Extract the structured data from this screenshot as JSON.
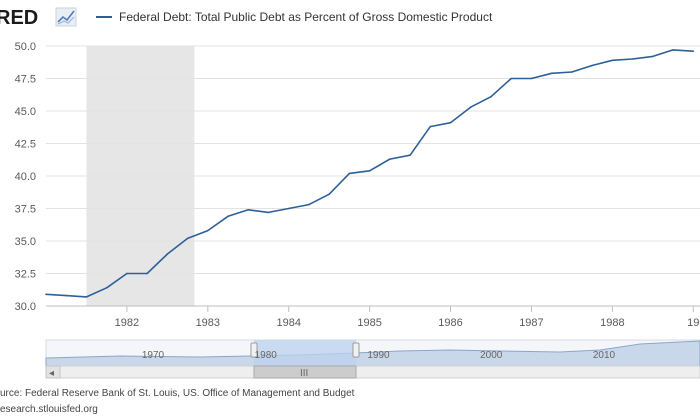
{
  "brand": {
    "logo_text": "RED"
  },
  "chart_data": {
    "type": "line",
    "title": "",
    "xlabel": "",
    "ylabel": "",
    "legend": {
      "placement": "top-left"
    },
    "series": [
      {
        "name": "Federal Debt: Total Public Debt as Percent of Gross Domestic Product",
        "color": "#2f5f98",
        "points": [
          {
            "x": "1981-01",
            "y": 30.9
          },
          {
            "x": "1981-04",
            "y": 30.8
          },
          {
            "x": "1981-07",
            "y": 30.7
          },
          {
            "x": "1981-10",
            "y": 31.4
          },
          {
            "x": "1982-01",
            "y": 32.5
          },
          {
            "x": "1982-04",
            "y": 32.5
          },
          {
            "x": "1982-07",
            "y": 34.0
          },
          {
            "x": "1982-10",
            "y": 35.2
          },
          {
            "x": "1983-01",
            "y": 35.8
          },
          {
            "x": "1983-04",
            "y": 36.9
          },
          {
            "x": "1983-07",
            "y": 37.4
          },
          {
            "x": "1983-10",
            "y": 37.2
          },
          {
            "x": "1984-01",
            "y": 37.5
          },
          {
            "x": "1984-04",
            "y": 37.8
          },
          {
            "x": "1984-07",
            "y": 38.6
          },
          {
            "x": "1984-10",
            "y": 40.2
          },
          {
            "x": "1985-01",
            "y": 40.4
          },
          {
            "x": "1985-04",
            "y": 41.3
          },
          {
            "x": "1985-07",
            "y": 41.6
          },
          {
            "x": "1985-10",
            "y": 43.8
          },
          {
            "x": "1986-01",
            "y": 44.1
          },
          {
            "x": "1986-04",
            "y": 45.3
          },
          {
            "x": "1986-07",
            "y": 46.1
          },
          {
            "x": "1986-10",
            "y": 47.5
          },
          {
            "x": "1987-01",
            "y": 47.5
          },
          {
            "x": "1987-04",
            "y": 47.9
          },
          {
            "x": "1987-07",
            "y": 48.0
          },
          {
            "x": "1987-10",
            "y": 48.5
          },
          {
            "x": "1988-01",
            "y": 48.9
          },
          {
            "x": "1988-04",
            "y": 49.0
          },
          {
            "x": "1988-07",
            "y": 49.2
          },
          {
            "x": "1988-10",
            "y": 49.7
          },
          {
            "x": "1989-01",
            "y": 49.6
          }
        ]
      }
    ],
    "recession_shading": [
      {
        "start": "1981-07",
        "end": "1982-11"
      }
    ],
    "y_ticks": [
      "50.0",
      "47.5",
      "45.0",
      "42.5",
      "40.0",
      "37.5",
      "35.0",
      "32.5",
      "30.0"
    ],
    "ylim": [
      30.0,
      50.0
    ],
    "x_ticks": [
      "1982",
      "1983",
      "1984",
      "1985",
      "1986",
      "1987",
      "1988",
      "19"
    ],
    "xlim": [
      "1981-01",
      "1989-02"
    ],
    "grid": "horizontal"
  },
  "navigator": {
    "labels": [
      "1970",
      "1980",
      "1990",
      "2000",
      "2010"
    ],
    "grip_label": "III",
    "left_arrow": "◂"
  },
  "footer": {
    "source": "urce: Federal Reserve Bank of St. Louis, US. Office of Management and Budget",
    "url": "esearch.stlouisfed.org"
  }
}
